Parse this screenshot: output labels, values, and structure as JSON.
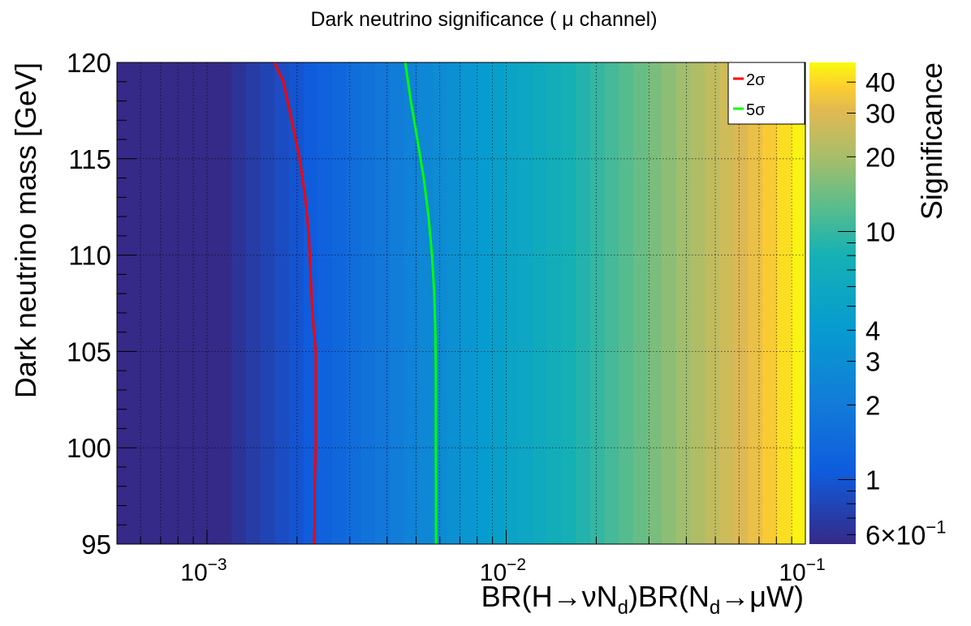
{
  "chart_data": {
    "type": "heatmap",
    "title": "Dark neutrino significance ( μ channel)",
    "xlabel": {
      "parts": [
        "BR(H",
        "→",
        "νN",
        "d",
        ")BR(N",
        "d",
        "→",
        "μW)"
      ]
    },
    "ylabel": "Dark neutrino mass [GeV]",
    "zlabel": "Significance",
    "x_scale": "log",
    "xlim": [
      0.0005,
      0.1
    ],
    "ylim": [
      95,
      120
    ],
    "zlim": [
      0.55,
      48
    ],
    "z_scale": "log",
    "x_ticks": [
      {
        "value": 0.001,
        "base": "10",
        "exp": "−3"
      },
      {
        "value": 0.01,
        "base": "10",
        "exp": "−2"
      },
      {
        "value": 0.1,
        "base": "10",
        "exp": "−1"
      }
    ],
    "y_ticks": [
      "95",
      "100",
      "105",
      "110",
      "115",
      "120"
    ],
    "z_ticks": [
      {
        "value": 0.6,
        "label": "6×10",
        "exp": "−1"
      },
      {
        "value": 1,
        "label": "1"
      },
      {
        "value": 2,
        "label": "2"
      },
      {
        "value": 3,
        "label": "3"
      },
      {
        "value": 4,
        "label": "4"
      },
      {
        "value": 10,
        "label": "10"
      },
      {
        "value": 20,
        "label": "20"
      },
      {
        "value": 30,
        "label": "30"
      },
      {
        "value": 40,
        "label": "40"
      }
    ],
    "significance_model": "proportional to BR, approx. 1 at BR = 0.00205",
    "grid": true,
    "legend": {
      "position": "top-right",
      "entries": [
        {
          "label": "2σ",
          "color": "#ff0000"
        },
        {
          "label": "5σ",
          "color": "#00ff00"
        }
      ]
    },
    "series": [
      {
        "name": "2σ",
        "color": "#ff0000",
        "points": [
          [
            0.00168,
            120
          ],
          [
            0.0018,
            119
          ],
          [
            0.00192,
            117
          ],
          [
            0.00204,
            115
          ],
          [
            0.00213,
            113
          ],
          [
            0.00219,
            111
          ],
          [
            0.00222,
            109
          ],
          [
            0.00225,
            107
          ],
          [
            0.00231,
            105
          ],
          [
            0.00231,
            102
          ],
          [
            0.00231,
            100
          ],
          [
            0.00229,
            98
          ],
          [
            0.00229,
            96
          ],
          [
            0.00228,
            95
          ]
        ]
      },
      {
        "name": "5σ",
        "color": "#00ff00",
        "points": [
          [
            0.0046,
            120
          ],
          [
            0.0048,
            118
          ],
          [
            0.00505,
            116
          ],
          [
            0.0053,
            114
          ],
          [
            0.0055,
            112
          ],
          [
            0.00565,
            110
          ],
          [
            0.00575,
            108
          ],
          [
            0.0058,
            106
          ],
          [
            0.00582,
            104
          ],
          [
            0.00582,
            102
          ],
          [
            0.00582,
            100
          ],
          [
            0.00583,
            98
          ],
          [
            0.00583,
            96
          ],
          [
            0.00583,
            95
          ]
        ]
      }
    ]
  }
}
